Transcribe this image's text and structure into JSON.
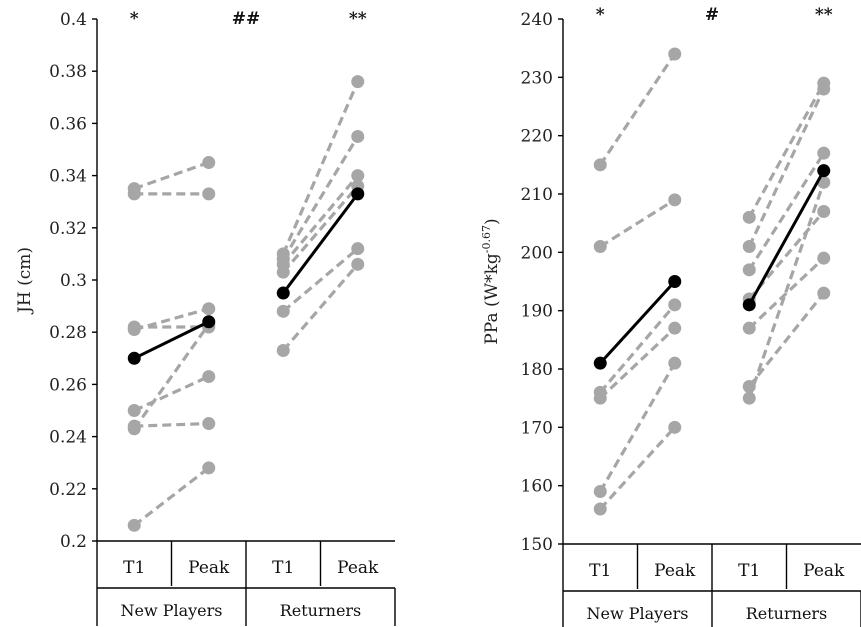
{
  "chart_data": [
    {
      "type": "line",
      "ylabel": "JH (cm)",
      "ylim": [
        0.2,
        0.4
      ],
      "yticks": [
        "0.2",
        "0.22",
        "0.24",
        "0.26",
        "0.28",
        "0.3",
        "0.32",
        "0.34",
        "0.36",
        "0.38",
        "0.4"
      ],
      "categories": [
        "T1",
        "Peak",
        "T1",
        "Peak"
      ],
      "groups": [
        "New Players",
        "Returners"
      ],
      "significance": [
        "*",
        "##",
        "**"
      ],
      "grid": false,
      "individual_color": "#a6a6a6",
      "mean_color": "#000000",
      "individuals": [
        {
          "group": 0,
          "values": [
            0.335,
            0.345
          ]
        },
        {
          "group": 0,
          "values": [
            0.333,
            0.333
          ]
        },
        {
          "group": 0,
          "values": [
            0.282,
            0.282
          ]
        },
        {
          "group": 0,
          "values": [
            0.281,
            0.289
          ]
        },
        {
          "group": 0,
          "values": [
            0.25,
            0.263
          ]
        },
        {
          "group": 0,
          "values": [
            0.244,
            0.245
          ]
        },
        {
          "group": 0,
          "values": [
            0.243,
            0.283
          ]
        },
        {
          "group": 0,
          "values": [
            0.206,
            0.228
          ]
        },
        {
          "group": 1,
          "values": [
            0.31,
            0.376
          ]
        },
        {
          "group": 1,
          "values": [
            0.308,
            0.355
          ]
        },
        {
          "group": 1,
          "values": [
            0.306,
            0.34
          ]
        },
        {
          "group": 1,
          "values": [
            0.303,
            0.336
          ]
        },
        {
          "group": 1,
          "values": [
            0.288,
            0.312
          ]
        },
        {
          "group": 1,
          "values": [
            0.273,
            0.306
          ]
        }
      ],
      "means": [
        {
          "group": 0,
          "values": [
            0.27,
            0.284
          ]
        },
        {
          "group": 1,
          "values": [
            0.295,
            0.333
          ]
        }
      ]
    },
    {
      "type": "line",
      "ylabel": "PPa (W*kg-0.67)",
      "ylabel_base": "PPa (W*kg",
      "ylabel_sup": "-0.67",
      "ylabel_end": ")",
      "ylim": [
        150,
        240
      ],
      "yticks": [
        "150",
        "160",
        "170",
        "180",
        "190",
        "200",
        "210",
        "220",
        "230",
        "240"
      ],
      "categories": [
        "T1",
        "Peak",
        "T1",
        "Peak"
      ],
      "groups": [
        "New Players",
        "Returners"
      ],
      "significance": [
        "*",
        "#",
        "**"
      ],
      "grid": false,
      "individual_color": "#a6a6a6",
      "mean_color": "#000000",
      "individuals": [
        {
          "group": 0,
          "values": [
            215,
            234
          ]
        },
        {
          "group": 0,
          "values": [
            201,
            209
          ]
        },
        {
          "group": 0,
          "values": [
            176,
            191
          ]
        },
        {
          "group": 0,
          "values": [
            175,
            187
          ]
        },
        {
          "group": 0,
          "values": [
            159,
            181
          ]
        },
        {
          "group": 0,
          "values": [
            156,
            170
          ]
        },
        {
          "group": 1,
          "values": [
            206,
            229
          ]
        },
        {
          "group": 1,
          "values": [
            201,
            228
          ]
        },
        {
          "group": 1,
          "values": [
            197,
            217
          ]
        },
        {
          "group": 1,
          "values": [
            192,
            207
          ]
        },
        {
          "group": 1,
          "values": [
            187,
            199
          ]
        },
        {
          "group": 1,
          "values": [
            177,
            193
          ]
        },
        {
          "group": 1,
          "values": [
            175,
            212
          ]
        }
      ],
      "means": [
        {
          "group": 0,
          "values": [
            181,
            195
          ]
        },
        {
          "group": 1,
          "values": [
            191,
            214
          ]
        }
      ]
    }
  ]
}
